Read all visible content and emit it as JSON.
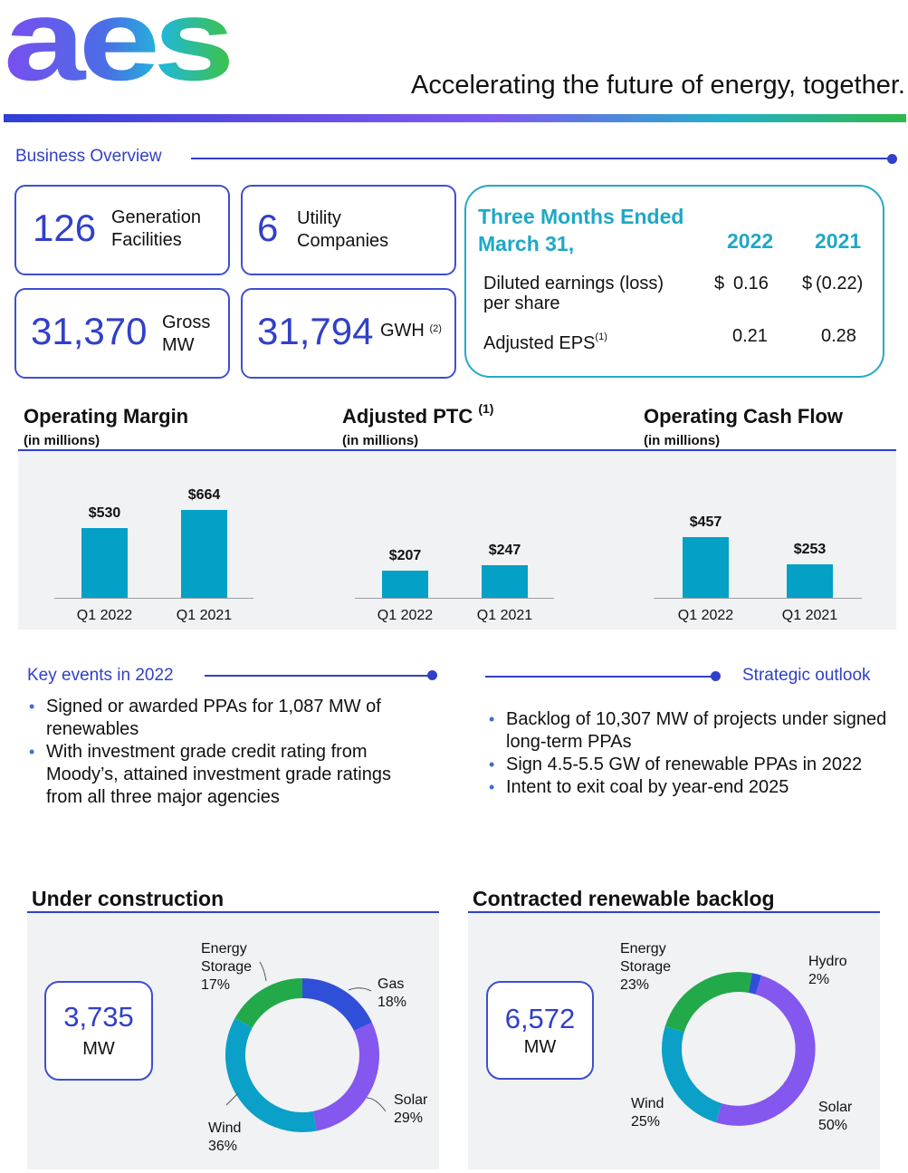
{
  "header": {
    "logo_text": "aes",
    "tagline": "Accelerating the future of energy, together."
  },
  "business_overview": {
    "title": "Business Overview",
    "stats": [
      {
        "value": "126",
        "label_line1": "Generation",
        "label_line2": "Facilities"
      },
      {
        "value": "6",
        "label_line1": "Utility",
        "label_line2": "Companies"
      },
      {
        "value": "31,370",
        "label_line1": "Gross",
        "label_line2": "MW"
      },
      {
        "value": "31,794",
        "label_line1": "GWH",
        "label_note": "(2)"
      }
    ],
    "eps": {
      "heading_line1": "Three Months Ended",
      "heading_line2": "March 31,",
      "col_2022": "2022",
      "col_2021": "2021",
      "rows": [
        {
          "label_line1": "Diluted earnings (loss)",
          "label_line2": "per share",
          "v2022_cur": "$",
          "v2022": "0.16",
          "v2021_cur": "$",
          "v2021": "(0.22)"
        },
        {
          "label": "Adjusted EPS",
          "note": "(1)",
          "v2022": "0.21",
          "v2021": "0.28"
        }
      ]
    }
  },
  "charts": {
    "unit_label": "(in millions)",
    "titles": [
      "Operating Margin",
      "Adjusted PTC",
      "Operating Cash Flow"
    ],
    "ptc_note": "(1)"
  },
  "chart_data": [
    {
      "type": "bar",
      "title": "Operating Margin",
      "ylabel": "(in millions)",
      "categories": [
        "Q1 2022",
        "Q1 2021"
      ],
      "values": [
        530,
        664
      ],
      "labels": [
        "$530",
        "$664"
      ]
    },
    {
      "type": "bar",
      "title": "Adjusted PTC (1)",
      "ylabel": "(in millions)",
      "categories": [
        "Q1 2022",
        "Q1 2021"
      ],
      "values": [
        207,
        247
      ],
      "labels": [
        "$207",
        "$247"
      ]
    },
    {
      "type": "bar",
      "title": "Operating Cash Flow",
      "ylabel": "(in millions)",
      "categories": [
        "Q1 2022",
        "Q1 2021"
      ],
      "values": [
        457,
        253
      ],
      "labels": [
        "$457",
        "$253"
      ]
    },
    {
      "type": "pie",
      "title": "Under construction",
      "total": "3,735",
      "unit": "MW",
      "slices": [
        {
          "name_line1": "Gas",
          "pct": "18%",
          "value": 18,
          "color": "#2f4fd8"
        },
        {
          "name_line1": "Solar",
          "pct": "29%",
          "value": 29,
          "color": "#8457ef"
        },
        {
          "name_line1": "Wind",
          "pct": "36%",
          "value": 36,
          "color": "#0aa0c8"
        },
        {
          "name_line1": "Energy",
          "name_line2": "Storage",
          "pct": "17%",
          "value": 17,
          "color": "#22a94a"
        }
      ]
    },
    {
      "type": "pie",
      "title": "Contracted renewable backlog",
      "total": "6,572",
      "unit": "MW",
      "slices": [
        {
          "name_line1": "Hydro",
          "pct": "2%",
          "value": 2,
          "color": "#2f4fd8"
        },
        {
          "name_line1": "Solar",
          "pct": "50%",
          "value": 50,
          "color": "#8457ef"
        },
        {
          "name_line1": "Wind",
          "pct": "25%",
          "value": 25,
          "color": "#0aa0c8"
        },
        {
          "name_line1": "Energy",
          "name_line2": "Storage",
          "pct": "23%",
          "value": 23,
          "color": "#22a94a"
        }
      ]
    }
  ],
  "key_events": {
    "title": "Key events in 2022",
    "items": [
      "Signed or awarded PPAs for 1,087 MW of renewables",
      "With investment grade credit rating from Moody’s, attained investment grade ratings from all three major agencies"
    ]
  },
  "strategic_outlook": {
    "title": "Strategic outlook",
    "items": [
      "Backlog of 10,307 MW of projects under signed long-term PPAs",
      "Sign 4.5-5.5 GW of renewable PPAs in 2022",
      "Intent to exit coal by year-end 2025"
    ]
  },
  "colors": {
    "brand_blue": "#3140c8",
    "teal": "#1ea8c6",
    "bar": "#04a0c6"
  }
}
